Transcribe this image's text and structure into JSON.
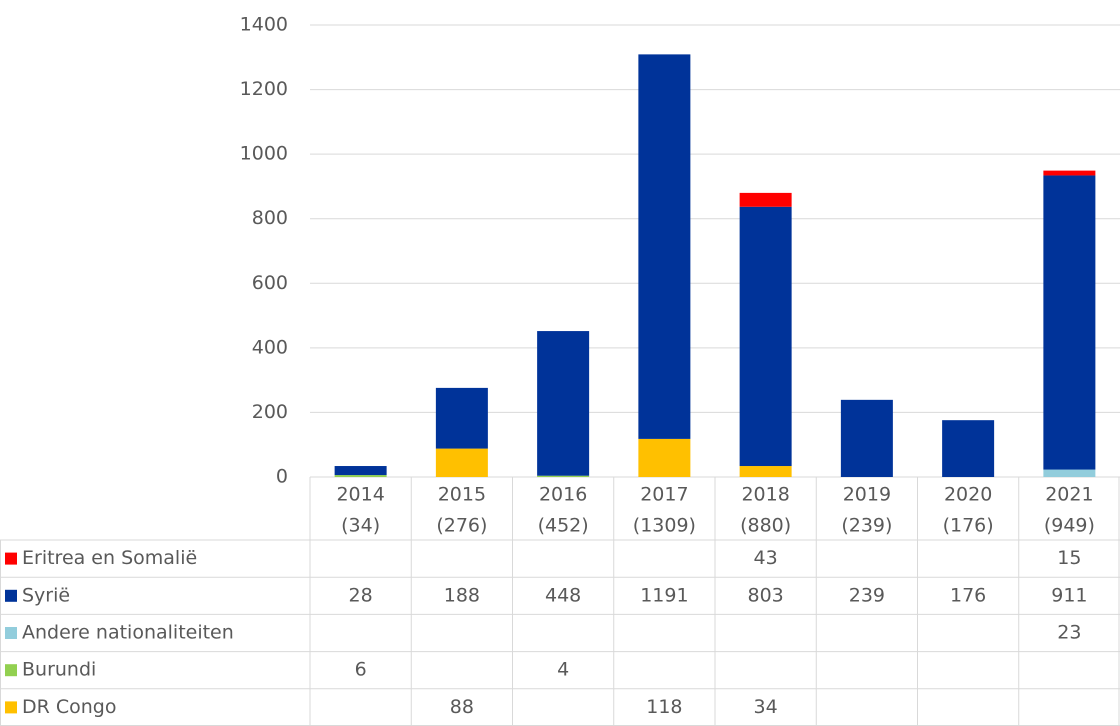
{
  "chart_data": {
    "type": "bar",
    "stacked": true,
    "categories": [
      [
        "2014",
        "(34)"
      ],
      [
        "2015",
        "(276)"
      ],
      [
        "2016",
        "(452)"
      ],
      [
        "2017",
        "(1309)"
      ],
      [
        "2018",
        "(880)"
      ],
      [
        "2019",
        "(239)"
      ],
      [
        "2020",
        "(176)"
      ],
      [
        "2021",
        "(949)"
      ]
    ],
    "series": [
      {
        "name": "Eritrea en Somalië",
        "color": "#ff0000",
        "values": [
          null,
          null,
          null,
          null,
          43,
          null,
          null,
          15
        ]
      },
      {
        "name": "Syrië",
        "color": "#003399",
        "values": [
          28,
          188,
          448,
          1191,
          803,
          239,
          176,
          911
        ]
      },
      {
        "name": "Andere nationaliteiten",
        "color": "#92cddc",
        "values": [
          null,
          null,
          null,
          null,
          null,
          null,
          null,
          23
        ]
      },
      {
        "name": "Burundi",
        "color": "#92d050",
        "values": [
          6,
          null,
          4,
          null,
          null,
          null,
          null,
          null
        ]
      },
      {
        "name": "DR Congo",
        "color": "#ffc000",
        "values": [
          null,
          88,
          null,
          118,
          34,
          null,
          null,
          null
        ]
      }
    ],
    "ylim": [
      0,
      1400
    ],
    "yticks": [
      0,
      200,
      400,
      600,
      800,
      1000,
      1200,
      1400
    ],
    "grid": true
  }
}
